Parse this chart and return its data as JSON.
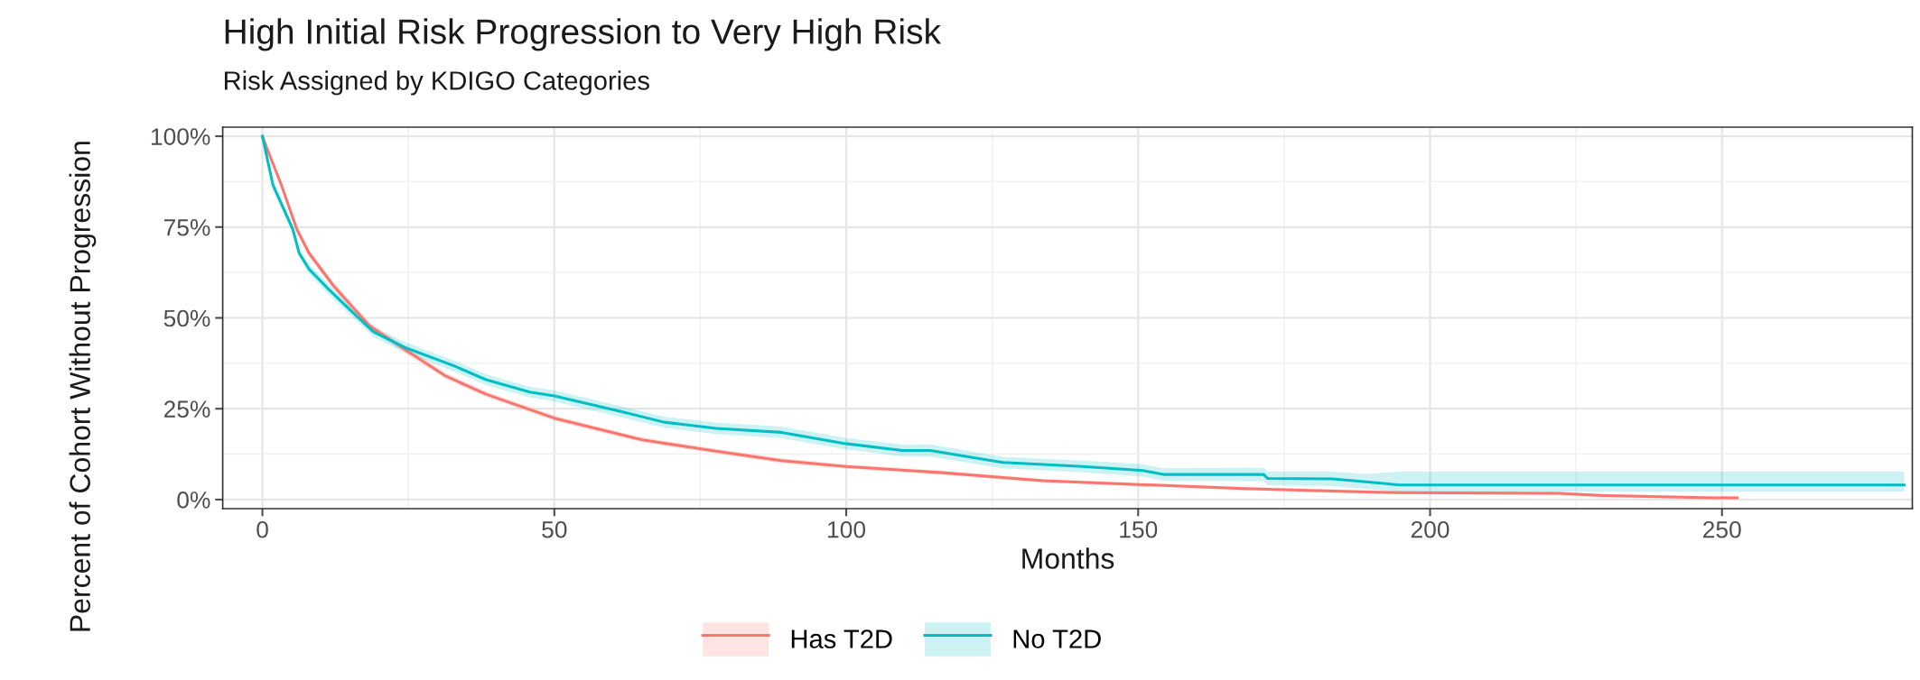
{
  "chart_data": {
    "type": "line",
    "title": "High Initial Risk Progression to Very High Risk",
    "subtitle": "Risk Assigned by KDIGO Categories",
    "xlabel": "Months",
    "ylabel": "Percent of Cohort Without Progression",
    "xlim": [
      -6.8,
      282.6
    ],
    "ylim": [
      -2.5,
      102.5
    ],
    "xticks": [
      0,
      50,
      100,
      150,
      200,
      250
    ],
    "yticks": [
      {
        "value": 0,
        "label": "0%"
      },
      {
        "value": 25,
        "label": "25%"
      },
      {
        "value": 50,
        "label": "50%"
      },
      {
        "value": 75,
        "label": "75%"
      },
      {
        "value": 100,
        "label": "100%"
      }
    ],
    "grid": true,
    "legend": "bottom",
    "series": [
      {
        "name": "Has T2D",
        "color": "#f8766d",
        "x": [
          0,
          0.8,
          3.2,
          5.9,
          8,
          12.1,
          18.3,
          24.5,
          31.4,
          38.3,
          50,
          65.1,
          78.2,
          88.9,
          99.9,
          116.4,
          133.6,
          150.8,
          168,
          186,
          194.7,
          221.9,
          229.7,
          248.3,
          252.6
        ],
        "values": [
          100,
          96.6,
          86.8,
          74.4,
          67.8,
          59,
          47.9,
          41.2,
          34,
          29,
          22.4,
          16.4,
          13.2,
          10.7,
          9.1,
          7.4,
          5.2,
          4.1,
          3.0,
          2.2,
          1.9,
          1.7,
          1.1,
          0.5,
          0.5
        ],
        "lower": [
          100,
          95.8,
          85.8,
          73.4,
          66.8,
          58,
          46.9,
          40.2,
          33.1,
          28.2,
          21.6,
          15.7,
          12.5,
          10.0,
          8.5,
          6.8,
          4.7,
          3.6,
          2.5,
          1.7,
          1.4,
          1.2,
          0.6,
          0.1,
          0.1
        ],
        "upper": [
          100,
          97.4,
          87.8,
          75.4,
          68.8,
          60,
          48.9,
          42.2,
          34.9,
          29.8,
          23.2,
          17.1,
          13.9,
          11.4,
          9.7,
          8.0,
          5.7,
          4.6,
          3.5,
          2.7,
          2.4,
          2.2,
          1.6,
          0.9,
          0.9
        ]
      },
      {
        "name": "No T2D",
        "color": "#00bfc4",
        "x": [
          0,
          1.8,
          5.2,
          6.3,
          8,
          11.4,
          14.9,
          19,
          24.5,
          32.8,
          38.3,
          45.8,
          50,
          61.7,
          68.8,
          77.7,
          88.9,
          99.9,
          109.6,
          114.4,
          126.8,
          140.5,
          150.8,
          154.3,
          171.5,
          172.2,
          183.3,
          189,
          194.7,
          281.2
        ],
        "values": [
          100,
          86.6,
          74.4,
          67.8,
          63.4,
          57.8,
          52.4,
          46.2,
          41.8,
          36.8,
          33,
          29.6,
          28.5,
          24.1,
          21.3,
          19.6,
          18.5,
          15.4,
          13.5,
          13.5,
          10.2,
          9.1,
          8,
          6.9,
          6.9,
          5.8,
          5.7,
          4.9,
          4.0,
          4.0
        ],
        "lower": [
          100,
          85.6,
          73.2,
          66.6,
          62.1,
          56.4,
          51,
          44.8,
          40.3,
          35.3,
          31.5,
          28.1,
          27,
          22.6,
          19.8,
          18,
          16.9,
          13.8,
          11.9,
          11.8,
          8.6,
          7.5,
          6.3,
          5.2,
          5.0,
          3.9,
          3.7,
          2.9,
          2.2,
          2.2
        ],
        "upper": [
          100,
          87.6,
          75.6,
          69,
          64.7,
          59.2,
          53.8,
          47.6,
          43.3,
          38.3,
          34.5,
          31.1,
          30,
          25.6,
          22.8,
          21.2,
          20.1,
          17,
          15.1,
          15.2,
          11.8,
          10.7,
          9.7,
          8.6,
          8.8,
          7.7,
          7.7,
          7.0,
          7.7,
          7.7
        ]
      }
    ]
  }
}
